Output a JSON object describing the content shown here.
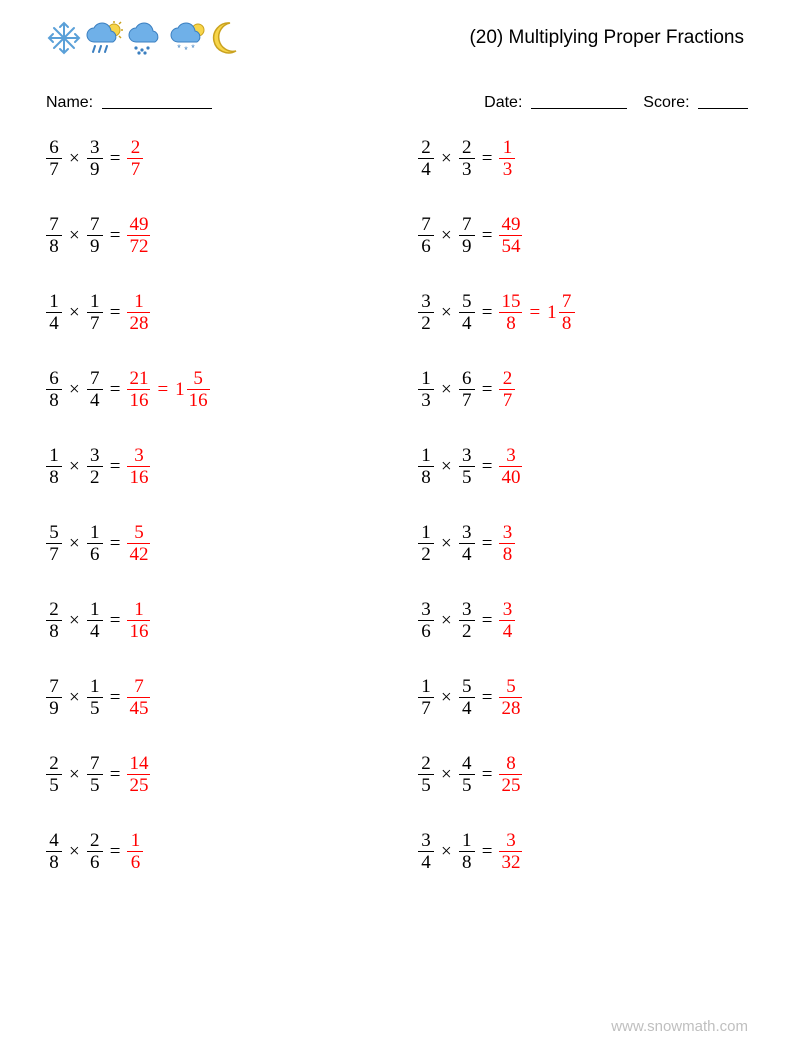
{
  "colors": {
    "text": "#000000",
    "answer": "#ff0000",
    "footer": "#bfbfbf",
    "background": "#ffffff",
    "icon_blue": "#6fb0e8",
    "icon_blue_dark": "#3b7fc0",
    "icon_yellow": "#f7d54a",
    "icon_yellow_stroke": "#caa21e",
    "icon_snow_stroke": "#5aa0d8"
  },
  "header": {
    "title": "(20) Multiplying Proper Fractions",
    "icons": [
      "snowflake",
      "cloud-rain-sun",
      "cloud-rain",
      "cloud-snow-sun",
      "moon"
    ]
  },
  "meta": {
    "name_label": "Name:",
    "date_label": "Date:",
    "score_label": "Score:"
  },
  "footer": "www.snowmath.com",
  "layout": {
    "font_size_eq": 19,
    "row_gap": 29,
    "col0_width": 372
  },
  "problems": {
    "left": [
      {
        "a": [
          6,
          7
        ],
        "b": [
          3,
          9
        ],
        "ans": [
          2,
          7
        ]
      },
      {
        "a": [
          7,
          8
        ],
        "b": [
          7,
          9
        ],
        "ans": [
          49,
          72
        ]
      },
      {
        "a": [
          1,
          4
        ],
        "b": [
          1,
          7
        ],
        "ans": [
          1,
          28
        ]
      },
      {
        "a": [
          6,
          8
        ],
        "b": [
          7,
          4
        ],
        "ans": [
          21,
          16
        ],
        "mixed": [
          1,
          5,
          16
        ]
      },
      {
        "a": [
          1,
          8
        ],
        "b": [
          3,
          2
        ],
        "ans": [
          3,
          16
        ]
      },
      {
        "a": [
          5,
          7
        ],
        "b": [
          1,
          6
        ],
        "ans": [
          5,
          42
        ]
      },
      {
        "a": [
          2,
          8
        ],
        "b": [
          1,
          4
        ],
        "ans": [
          1,
          16
        ]
      },
      {
        "a": [
          7,
          9
        ],
        "b": [
          1,
          5
        ],
        "ans": [
          7,
          45
        ]
      },
      {
        "a": [
          2,
          5
        ],
        "b": [
          7,
          5
        ],
        "ans": [
          14,
          25
        ]
      },
      {
        "a": [
          4,
          8
        ],
        "b": [
          2,
          6
        ],
        "ans": [
          1,
          6
        ]
      }
    ],
    "right": [
      {
        "a": [
          2,
          4
        ],
        "b": [
          2,
          3
        ],
        "ans": [
          1,
          3
        ]
      },
      {
        "a": [
          7,
          6
        ],
        "b": [
          7,
          9
        ],
        "ans": [
          49,
          54
        ]
      },
      {
        "a": [
          3,
          2
        ],
        "b": [
          5,
          4
        ],
        "ans": [
          15,
          8
        ],
        "mixed": [
          1,
          7,
          8
        ]
      },
      {
        "a": [
          1,
          3
        ],
        "b": [
          6,
          7
        ],
        "ans": [
          2,
          7
        ]
      },
      {
        "a": [
          1,
          8
        ],
        "b": [
          3,
          5
        ],
        "ans": [
          3,
          40
        ]
      },
      {
        "a": [
          1,
          2
        ],
        "b": [
          3,
          4
        ],
        "ans": [
          3,
          8
        ]
      },
      {
        "a": [
          3,
          6
        ],
        "b": [
          3,
          2
        ],
        "ans": [
          3,
          4
        ]
      },
      {
        "a": [
          1,
          7
        ],
        "b": [
          5,
          4
        ],
        "ans": [
          5,
          28
        ]
      },
      {
        "a": [
          2,
          5
        ],
        "b": [
          4,
          5
        ],
        "ans": [
          8,
          25
        ]
      },
      {
        "a": [
          3,
          4
        ],
        "b": [
          1,
          8
        ],
        "ans": [
          3,
          32
        ]
      }
    ]
  }
}
